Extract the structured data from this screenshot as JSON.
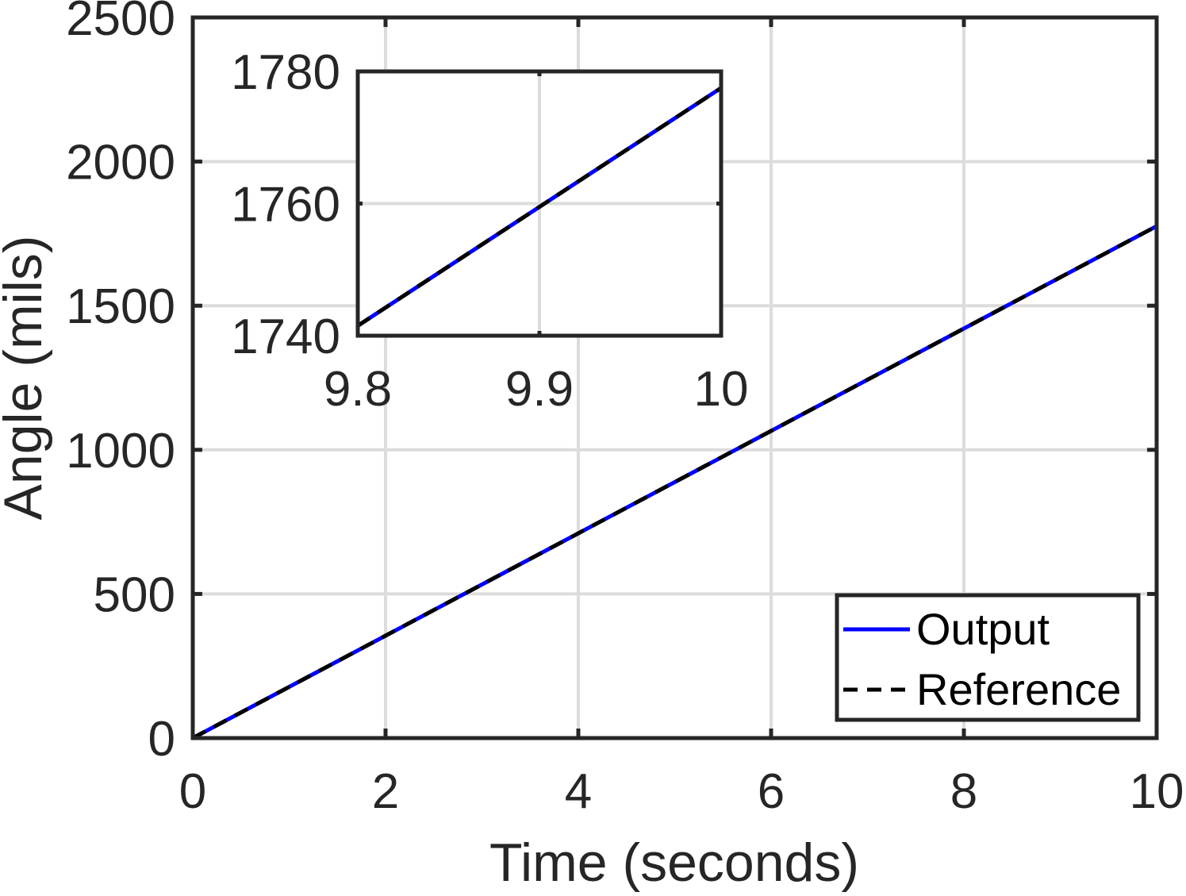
{
  "chart_data": [
    {
      "type": "line",
      "xlabel": "Time (seconds)",
      "ylabel": "Angle (mils)",
      "xlim": [
        0,
        10
      ],
      "ylim": [
        0,
        2500
      ],
      "xticks": [
        0,
        2,
        4,
        6,
        8,
        10
      ],
      "yticks": [
        0,
        500,
        1000,
        1500,
        2000,
        2500
      ],
      "grid": true,
      "legend": "bottom-right",
      "series": [
        {
          "name": "Output",
          "color": "#0000ff",
          "style": "solid",
          "x": [
            0,
            10
          ],
          "y": [
            0,
            1776
          ]
        },
        {
          "name": "Reference",
          "color": "#000000",
          "style": "dashed",
          "x": [
            0,
            10
          ],
          "y": [
            0,
            1776
          ]
        }
      ]
    },
    {
      "type": "line",
      "xlim": [
        9.8,
        10
      ],
      "ylim": [
        1740,
        1780
      ],
      "xticks": [
        "9.8",
        "9.9",
        "10"
      ],
      "yticks": [
        1740,
        1760,
        1780
      ],
      "grid": true,
      "series": [
        {
          "color": "#0000ff",
          "style": "solid",
          "x": [
            9.8,
            10
          ],
          "y": [
            1741.5,
            1777.5
          ]
        },
        {
          "color": "#000000",
          "style": "dashed",
          "x": [
            9.8,
            10
          ],
          "y": [
            1741.5,
            1777.5
          ]
        }
      ]
    }
  ]
}
